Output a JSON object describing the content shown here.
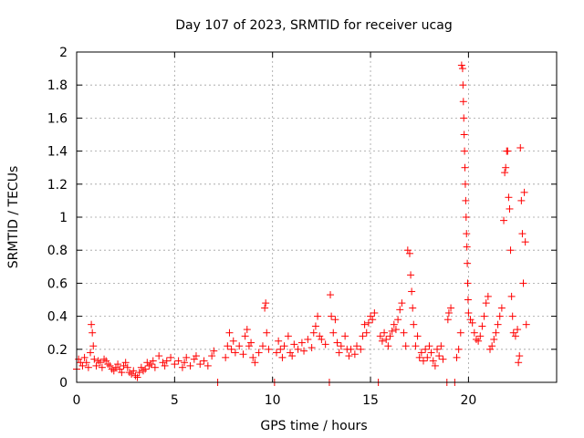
{
  "chart_data": {
    "type": "scatter",
    "title": "Day 107 of 2023, SRMTID for receiver ucag",
    "xlabel": "GPS time / hours",
    "ylabel": "SRMTID / TECUs",
    "xlim": [
      0,
      24.5
    ],
    "ylim": [
      0,
      2
    ],
    "xticks": [
      0,
      5,
      10,
      15,
      20
    ],
    "xtick_labels": [
      "0",
      "5",
      "10",
      "15",
      "20"
    ],
    "yticks": [
      0,
      0.2,
      0.4,
      0.6,
      0.8,
      1,
      1.2,
      1.4,
      1.6,
      1.8,
      2
    ],
    "ytick_labels": [
      "0",
      "0.2",
      "0.4",
      "0.6",
      "0.8",
      "1",
      "1.2",
      "1.4",
      "1.6",
      "1.8",
      "2"
    ],
    "grid": true,
    "marker": "plus",
    "color": "#ff0000",
    "series": [
      {
        "name": "SRMTID",
        "points": [
          [
            0.0,
            0.08
          ],
          [
            0.1,
            0.14
          ],
          [
            0.2,
            0.12
          ],
          [
            0.3,
            0.1
          ],
          [
            0.4,
            0.15
          ],
          [
            0.5,
            0.12
          ],
          [
            0.6,
            0.09
          ],
          [
            0.7,
            0.18
          ],
          [
            0.75,
            0.35
          ],
          [
            0.8,
            0.3
          ],
          [
            0.85,
            0.22
          ],
          [
            0.9,
            0.14
          ],
          [
            1.0,
            0.1
          ],
          [
            1.1,
            0.13
          ],
          [
            1.2,
            0.12
          ],
          [
            1.3,
            0.09
          ],
          [
            1.4,
            0.14
          ],
          [
            1.5,
            0.13
          ],
          [
            1.6,
            0.11
          ],
          [
            1.7,
            0.1
          ],
          [
            1.8,
            0.08
          ],
          [
            1.9,
            0.07
          ],
          [
            2.0,
            0.09
          ],
          [
            2.1,
            0.11
          ],
          [
            2.2,
            0.08
          ],
          [
            2.3,
            0.06
          ],
          [
            2.4,
            0.1
          ],
          [
            2.5,
            0.12
          ],
          [
            2.6,
            0.09
          ],
          [
            2.7,
            0.06
          ],
          [
            2.8,
            0.05
          ],
          [
            2.9,
            0.07
          ],
          [
            3.0,
            0.04
          ],
          [
            3.1,
            0.03
          ],
          [
            3.2,
            0.06
          ],
          [
            3.3,
            0.09
          ],
          [
            3.4,
            0.07
          ],
          [
            3.5,
            0.08
          ],
          [
            3.6,
            0.12
          ],
          [
            3.7,
            0.1
          ],
          [
            3.8,
            0.11
          ],
          [
            3.9,
            0.13
          ],
          [
            4.0,
            0.09
          ],
          [
            4.2,
            0.16
          ],
          [
            4.4,
            0.12
          ],
          [
            4.5,
            0.1
          ],
          [
            4.6,
            0.13
          ],
          [
            4.8,
            0.15
          ],
          [
            5.0,
            0.11
          ],
          [
            5.2,
            0.13
          ],
          [
            5.4,
            0.09
          ],
          [
            5.5,
            0.12
          ],
          [
            5.6,
            0.15
          ],
          [
            5.8,
            0.1
          ],
          [
            6.0,
            0.14
          ],
          [
            6.1,
            0.16
          ],
          [
            6.3,
            0.11
          ],
          [
            6.5,
            0.13
          ],
          [
            6.7,
            0.1
          ],
          [
            6.9,
            0.16
          ],
          [
            7.0,
            0.19
          ],
          [
            7.2,
            0.0
          ],
          [
            7.6,
            0.15
          ],
          [
            7.7,
            0.22
          ],
          [
            7.8,
            0.3
          ],
          [
            7.9,
            0.2
          ],
          [
            8.0,
            0.25
          ],
          [
            8.1,
            0.18
          ],
          [
            8.3,
            0.22
          ],
          [
            8.5,
            0.17
          ],
          [
            8.6,
            0.28
          ],
          [
            8.7,
            0.32
          ],
          [
            8.8,
            0.22
          ],
          [
            8.9,
            0.24
          ],
          [
            9.0,
            0.15
          ],
          [
            9.1,
            0.12
          ],
          [
            9.3,
            0.18
          ],
          [
            9.5,
            0.22
          ],
          [
            9.6,
            0.45
          ],
          [
            9.65,
            0.48
          ],
          [
            9.7,
            0.3
          ],
          [
            9.8,
            0.2
          ],
          [
            10.1,
            0.0
          ],
          [
            10.2,
            0.18
          ],
          [
            10.3,
            0.25
          ],
          [
            10.4,
            0.2
          ],
          [
            10.5,
            0.15
          ],
          [
            10.6,
            0.22
          ],
          [
            10.8,
            0.28
          ],
          [
            10.9,
            0.18
          ],
          [
            11.0,
            0.16
          ],
          [
            11.1,
            0.23
          ],
          [
            11.3,
            0.2
          ],
          [
            11.5,
            0.24
          ],
          [
            11.6,
            0.19
          ],
          [
            11.8,
            0.26
          ],
          [
            12.0,
            0.21
          ],
          [
            12.1,
            0.3
          ],
          [
            12.2,
            0.34
          ],
          [
            12.3,
            0.4
          ],
          [
            12.4,
            0.28
          ],
          [
            12.5,
            0.26
          ],
          [
            12.7,
            0.23
          ],
          [
            12.9,
            0.0
          ],
          [
            12.95,
            0.53
          ],
          [
            13.0,
            0.4
          ],
          [
            13.1,
            0.3
          ],
          [
            13.2,
            0.38
          ],
          [
            13.3,
            0.24
          ],
          [
            13.4,
            0.18
          ],
          [
            13.5,
            0.22
          ],
          [
            13.7,
            0.28
          ],
          [
            13.8,
            0.2
          ],
          [
            13.9,
            0.16
          ],
          [
            14.0,
            0.2
          ],
          [
            14.2,
            0.17
          ],
          [
            14.3,
            0.22
          ],
          [
            14.5,
            0.2
          ],
          [
            14.6,
            0.28
          ],
          [
            14.7,
            0.35
          ],
          [
            14.8,
            0.3
          ],
          [
            14.9,
            0.36
          ],
          [
            15.0,
            0.4
          ],
          [
            15.1,
            0.38
          ],
          [
            15.2,
            0.42
          ],
          [
            15.4,
            0.0
          ],
          [
            15.5,
            0.28
          ],
          [
            15.6,
            0.25
          ],
          [
            15.7,
            0.3
          ],
          [
            15.8,
            0.26
          ],
          [
            15.9,
            0.22
          ],
          [
            16.0,
            0.28
          ],
          [
            16.1,
            0.31
          ],
          [
            16.2,
            0.35
          ],
          [
            16.3,
            0.32
          ],
          [
            16.4,
            0.38
          ],
          [
            16.5,
            0.44
          ],
          [
            16.6,
            0.48
          ],
          [
            16.7,
            0.3
          ],
          [
            16.8,
            0.22
          ],
          [
            16.9,
            0.8
          ],
          [
            17.0,
            0.78
          ],
          [
            17.05,
            0.65
          ],
          [
            17.1,
            0.55
          ],
          [
            17.15,
            0.45
          ],
          [
            17.2,
            0.35
          ],
          [
            17.3,
            0.22
          ],
          [
            17.4,
            0.28
          ],
          [
            17.5,
            0.15
          ],
          [
            17.6,
            0.18
          ],
          [
            17.7,
            0.13
          ],
          [
            17.8,
            0.2
          ],
          [
            17.9,
            0.15
          ],
          [
            18.0,
            0.22
          ],
          [
            18.1,
            0.18
          ],
          [
            18.2,
            0.13
          ],
          [
            18.3,
            0.1
          ],
          [
            18.4,
            0.2
          ],
          [
            18.5,
            0.16
          ],
          [
            18.6,
            0.22
          ],
          [
            18.7,
            0.14
          ],
          [
            18.9,
            0.0
          ],
          [
            18.95,
            0.38
          ],
          [
            19.0,
            0.42
          ],
          [
            19.1,
            0.45
          ],
          [
            19.3,
            0.0
          ],
          [
            19.4,
            0.15
          ],
          [
            19.5,
            0.2
          ],
          [
            19.6,
            0.3
          ],
          [
            19.65,
            1.92
          ],
          [
            19.7,
            1.9
          ],
          [
            19.72,
            1.8
          ],
          [
            19.74,
            1.7
          ],
          [
            19.76,
            1.6
          ],
          [
            19.78,
            1.5
          ],
          [
            19.8,
            1.4
          ],
          [
            19.82,
            1.3
          ],
          [
            19.84,
            1.2
          ],
          [
            19.86,
            1.1
          ],
          [
            19.88,
            1.0
          ],
          [
            19.9,
            0.9
          ],
          [
            19.92,
            0.82
          ],
          [
            19.94,
            0.72
          ],
          [
            19.96,
            0.6
          ],
          [
            19.98,
            0.5
          ],
          [
            20.0,
            0.42
          ],
          [
            20.1,
            0.38
          ],
          [
            20.2,
            0.36
          ],
          [
            20.3,
            0.3
          ],
          [
            20.4,
            0.26
          ],
          [
            20.5,
            0.25
          ],
          [
            20.6,
            0.28
          ],
          [
            20.7,
            0.34
          ],
          [
            20.8,
            0.4
          ],
          [
            20.9,
            0.48
          ],
          [
            21.0,
            0.52
          ],
          [
            21.1,
            0.2
          ],
          [
            21.2,
            0.22
          ],
          [
            21.3,
            0.26
          ],
          [
            21.4,
            0.3
          ],
          [
            21.5,
            0.35
          ],
          [
            21.6,
            0.4
          ],
          [
            21.7,
            0.45
          ],
          [
            21.8,
            0.98
          ],
          [
            21.85,
            1.27
          ],
          [
            21.9,
            1.3
          ],
          [
            21.95,
            1.4
          ],
          [
            22.0,
            1.4
          ],
          [
            22.05,
            1.12
          ],
          [
            22.1,
            1.05
          ],
          [
            22.15,
            0.8
          ],
          [
            22.2,
            0.52
          ],
          [
            22.25,
            0.4
          ],
          [
            22.3,
            0.3
          ],
          [
            22.4,
            0.28
          ],
          [
            22.5,
            0.32
          ],
          [
            22.55,
            0.12
          ],
          [
            22.6,
            0.16
          ],
          [
            22.65,
            1.42
          ],
          [
            22.7,
            1.1
          ],
          [
            22.75,
            0.9
          ],
          [
            22.8,
            0.6
          ],
          [
            22.85,
            1.15
          ],
          [
            22.9,
            0.85
          ],
          [
            22.95,
            0.35
          ]
        ]
      }
    ]
  }
}
